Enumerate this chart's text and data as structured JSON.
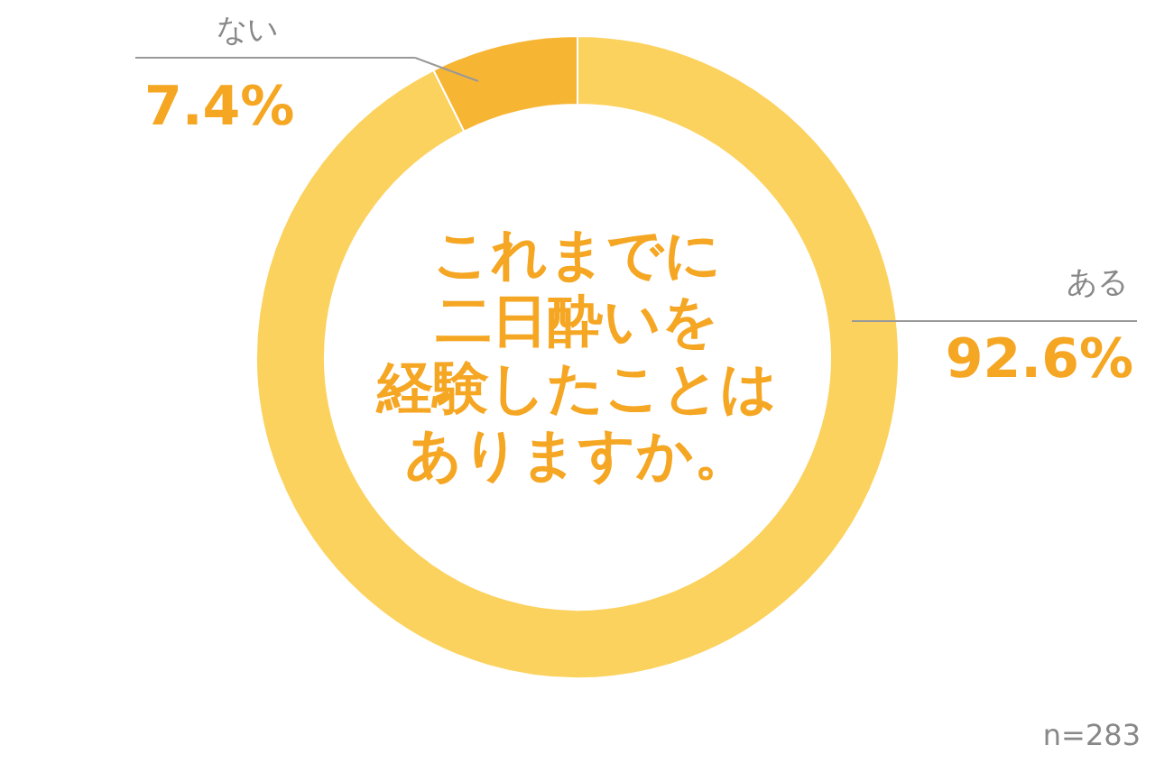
{
  "chart_data": {
    "type": "donut",
    "title": "これまでに二日酔いを経験したことはありますか。",
    "categories": [
      "ある",
      "ない"
    ],
    "values": [
      92.6,
      7.4
    ],
    "colors": [
      "#fcd25e",
      "#f7b534"
    ],
    "value_labels": [
      "92.6%",
      "7.4%"
    ],
    "annotations": [
      "n=283"
    ]
  }
}
